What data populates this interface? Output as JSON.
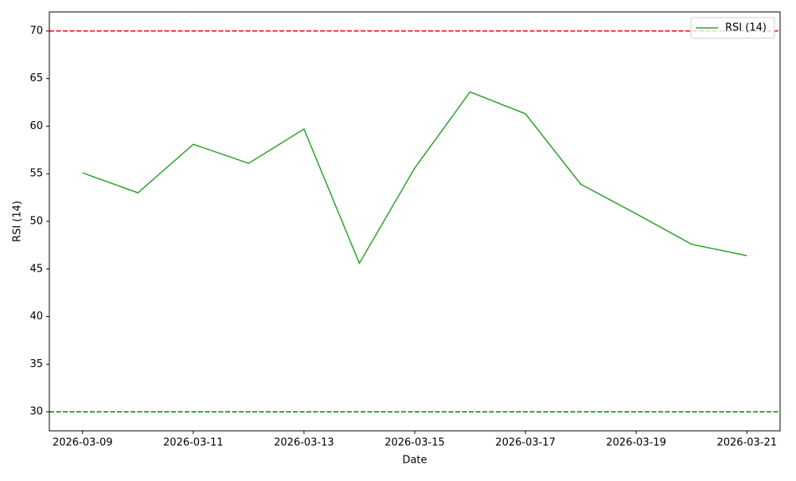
{
  "chart_data": {
    "type": "line",
    "xlabel": "Date",
    "ylabel": "RSI (14)",
    "x": [
      "2026-03-09",
      "2026-03-10",
      "2026-03-11",
      "2026-03-12",
      "2026-03-13",
      "2026-03-14",
      "2026-03-15",
      "2026-03-16",
      "2026-03-17",
      "2026-03-18",
      "2026-03-19",
      "2026-03-20",
      "2026-03-21"
    ],
    "series": [
      {
        "name": "RSI (14)",
        "color": "#2ca02c",
        "values": [
          55.1,
          53.0,
          58.1,
          56.1,
          59.7,
          45.6,
          55.6,
          63.6,
          61.3,
          53.9,
          50.8,
          47.6,
          46.4
        ]
      }
    ],
    "reference_lines": [
      {
        "value": 70,
        "color": "red"
      },
      {
        "value": 30,
        "color": "green"
      }
    ],
    "xlim": [
      "2026-03-08T09:36Z",
      "2026-03-21T14:24Z"
    ],
    "xticks": [
      "2026-03-09",
      "2026-03-11",
      "2026-03-13",
      "2026-03-15",
      "2026-03-17",
      "2026-03-19",
      "2026-03-21"
    ],
    "ylim": [
      28,
      72
    ],
    "yticks": [
      30,
      35,
      40,
      45,
      50,
      55,
      60,
      65,
      70
    ],
    "legend": "upper right"
  }
}
